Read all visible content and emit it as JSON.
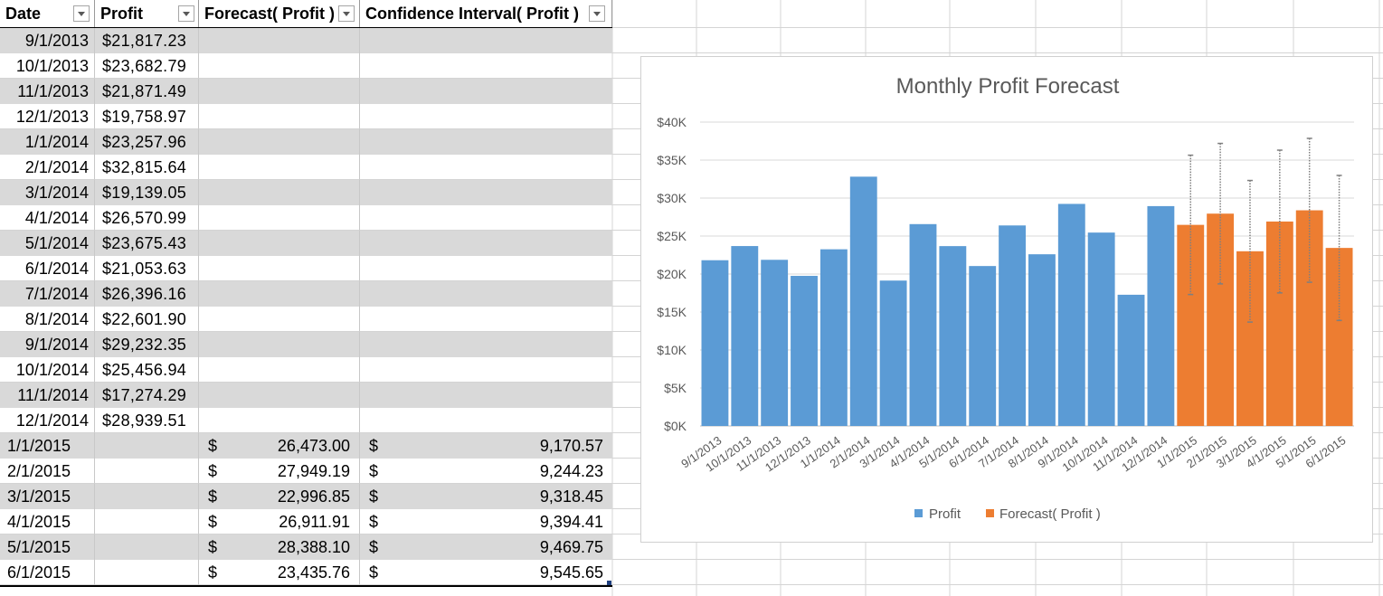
{
  "table": {
    "headers": {
      "date": "Date",
      "profit": "Profit",
      "forecast": "Forecast( Profit )",
      "ci": "Confidence Interval( Profit )"
    },
    "rows": [
      {
        "date": "9/1/2013",
        "profit": "$21,817.23"
      },
      {
        "date": "10/1/2013",
        "profit": "$23,682.79"
      },
      {
        "date": "11/1/2013",
        "profit": "$21,871.49"
      },
      {
        "date": "12/1/2013",
        "profit": "$19,758.97"
      },
      {
        "date": "1/1/2014",
        "profit": "$23,257.96"
      },
      {
        "date": "2/1/2014",
        "profit": "$32,815.64"
      },
      {
        "date": "3/1/2014",
        "profit": "$19,139.05"
      },
      {
        "date": "4/1/2014",
        "profit": "$26,570.99"
      },
      {
        "date": "5/1/2014",
        "profit": "$23,675.43"
      },
      {
        "date": "6/1/2014",
        "profit": "$21,053.63"
      },
      {
        "date": "7/1/2014",
        "profit": "$26,396.16"
      },
      {
        "date": "8/1/2014",
        "profit": "$22,601.90"
      },
      {
        "date": "9/1/2014",
        "profit": "$29,232.35"
      },
      {
        "date": "10/1/2014",
        "profit": "$25,456.94"
      },
      {
        "date": "11/1/2014",
        "profit": "$17,274.29"
      },
      {
        "date": "12/1/2014",
        "profit": "$28,939.51"
      },
      {
        "date": "1/1/2015",
        "fc_cur": "$",
        "fc": "26,473.00",
        "ci_cur": "$",
        "ci": "9,170.57"
      },
      {
        "date": "2/1/2015",
        "fc_cur": "$",
        "fc": "27,949.19",
        "ci_cur": "$",
        "ci": "9,244.23"
      },
      {
        "date": "3/1/2015",
        "fc_cur": "$",
        "fc": "22,996.85",
        "ci_cur": "$",
        "ci": "9,318.45"
      },
      {
        "date": "4/1/2015",
        "fc_cur": "$",
        "fc": "26,911.91",
        "ci_cur": "$",
        "ci": "9,394.41"
      },
      {
        "date": "5/1/2015",
        "fc_cur": "$",
        "fc": "28,388.10",
        "ci_cur": "$",
        "ci": "9,469.75"
      },
      {
        "date": "6/1/2015",
        "fc_cur": "$",
        "fc": "23,435.76",
        "ci_cur": "$",
        "ci": "9,545.65"
      }
    ]
  },
  "colors": {
    "profit": "#5b9bd5",
    "forecast": "#ed7d31",
    "band": "#d9d9d9",
    "gridline": "#d9d9d9",
    "text": "#595959"
  },
  "chart_data": {
    "type": "bar",
    "title": "Monthly Profit Forecast",
    "categories": [
      "9/1/2013",
      "10/1/2013",
      "11/1/2013",
      "12/1/2013",
      "1/1/2014",
      "2/1/2014",
      "3/1/2014",
      "4/1/2014",
      "5/1/2014",
      "6/1/2014",
      "7/1/2014",
      "8/1/2014",
      "9/1/2014",
      "10/1/2014",
      "11/1/2014",
      "12/1/2014",
      "1/1/2015",
      "2/1/2015",
      "3/1/2015",
      "4/1/2015",
      "5/1/2015",
      "6/1/2015"
    ],
    "series": [
      {
        "name": "Profit",
        "values": [
          21817.23,
          23682.79,
          21871.49,
          19758.97,
          23257.96,
          32815.64,
          19139.05,
          26570.99,
          23675.43,
          21053.63,
          26396.16,
          22601.9,
          29232.35,
          25456.94,
          17274.29,
          28939.51,
          null,
          null,
          null,
          null,
          null,
          null
        ]
      },
      {
        "name": "Forecast( Profit )",
        "values": [
          null,
          null,
          null,
          null,
          null,
          null,
          null,
          null,
          null,
          null,
          null,
          null,
          null,
          null,
          null,
          null,
          26473.0,
          27949.19,
          22996.85,
          26911.91,
          28388.1,
          23435.76
        ],
        "error": [
          null,
          null,
          null,
          null,
          null,
          null,
          null,
          null,
          null,
          null,
          null,
          null,
          null,
          null,
          null,
          null,
          9170.57,
          9244.23,
          9318.45,
          9394.41,
          9469.75,
          9545.65
        ]
      }
    ],
    "yticks": [
      "$0K",
      "$5K",
      "$10K",
      "$15K",
      "$20K",
      "$25K",
      "$30K",
      "$35K",
      "$40K"
    ],
    "ylim": [
      0,
      40000
    ],
    "grid": true,
    "legend": "bottom"
  }
}
